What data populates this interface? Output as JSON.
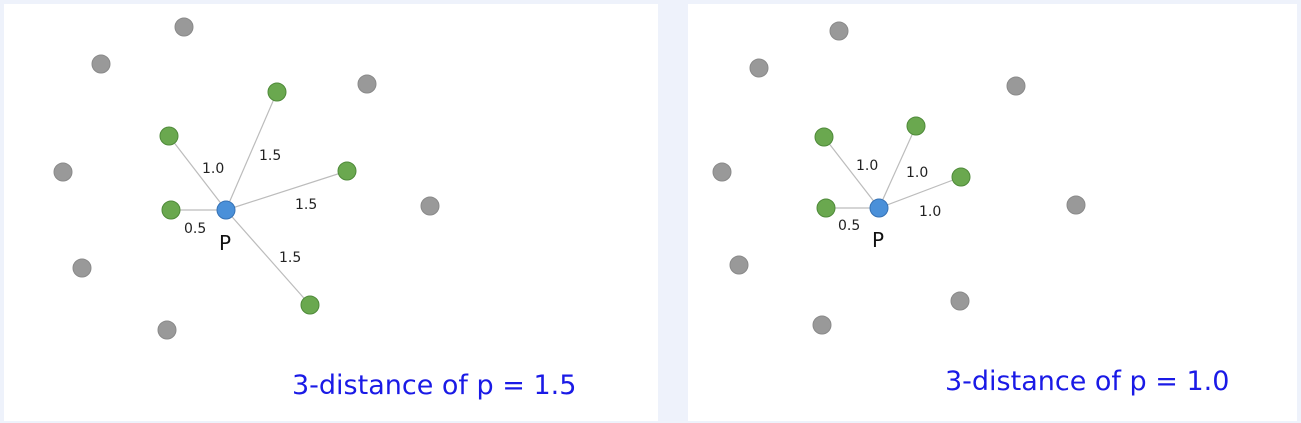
{
  "panels": [
    {
      "center_label": "P",
      "distances": [
        "1.0",
        "1.5",
        "1.5",
        "1.5",
        "0.5"
      ],
      "result_text": "3-distance of p = 1.5",
      "colors": {
        "neighbor": "#6aa84f",
        "other": "#999999",
        "center": "#4a90d9"
      }
    },
    {
      "center_label": "P",
      "distances": [
        "1.0",
        "1.0",
        "1.0",
        "0.5"
      ],
      "result_text": "3-distance of p = 1.0",
      "colors": {
        "neighbor": "#6aa84f",
        "other": "#999999",
        "center": "#4a90d9"
      }
    }
  ]
}
